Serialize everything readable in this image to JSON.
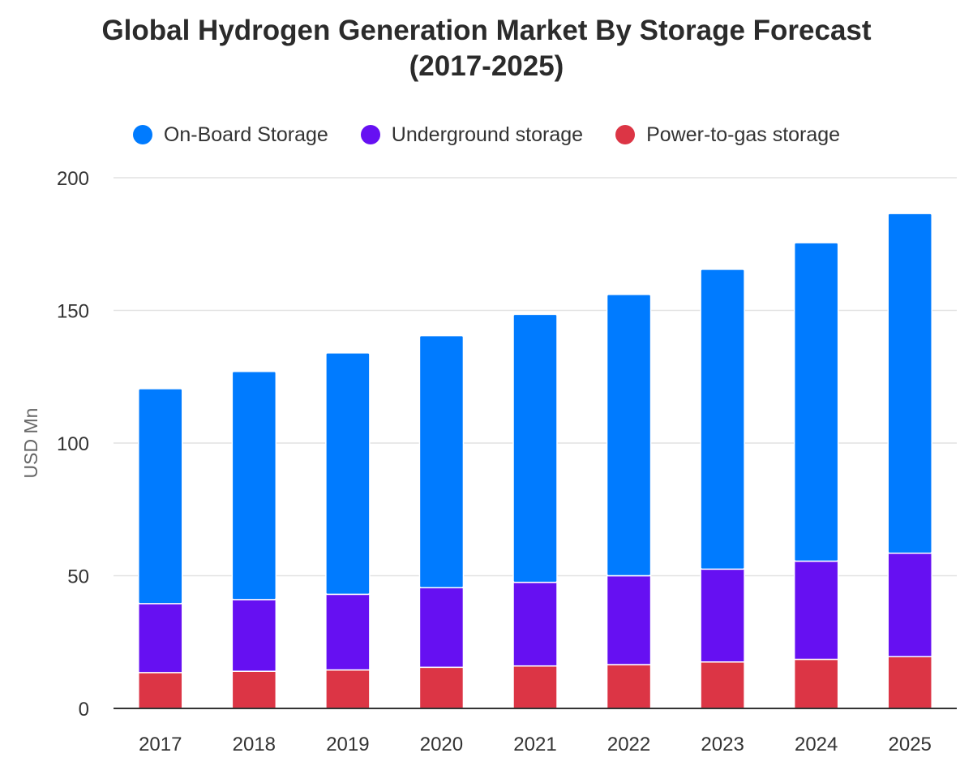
{
  "title_line1": "Global Hydrogen Generation Market By Storage Forecast",
  "title_line2": "(2017-2025)",
  "chart_data": {
    "type": "bar",
    "stacked": true,
    "title": "Global Hydrogen Generation Market By Storage Forecast (2017-2025)",
    "ylabel": "USD Mn",
    "xlabel": "",
    "ylim": [
      0,
      200
    ],
    "yticks": [
      0,
      50,
      100,
      150,
      200
    ],
    "grid": true,
    "legend_position": "top-center",
    "categories": [
      "2017",
      "2018",
      "2019",
      "2020",
      "2021",
      "2022",
      "2023",
      "2024",
      "2025"
    ],
    "series": [
      {
        "name": "Power-to-gas storage",
        "color": "#dc3545",
        "values": [
          13.5,
          14,
          14.5,
          15.5,
          16,
          16.5,
          17.5,
          18.5,
          19.5
        ]
      },
      {
        "name": "Underground storage",
        "color": "#6610f2",
        "values": [
          26,
          27,
          28.5,
          30,
          31.5,
          33.5,
          35,
          37,
          39
        ]
      },
      {
        "name": "On-Board Storage",
        "color": "#007bff",
        "values": [
          81,
          86,
          91,
          95,
          101,
          106,
          113,
          120,
          128
        ]
      }
    ]
  },
  "legend": [
    {
      "label": "On-Board Storage",
      "color": "#007bff"
    },
    {
      "label": "Underground storage",
      "color": "#6610f2"
    },
    {
      "label": "Power-to-gas storage",
      "color": "#dc3545"
    }
  ]
}
